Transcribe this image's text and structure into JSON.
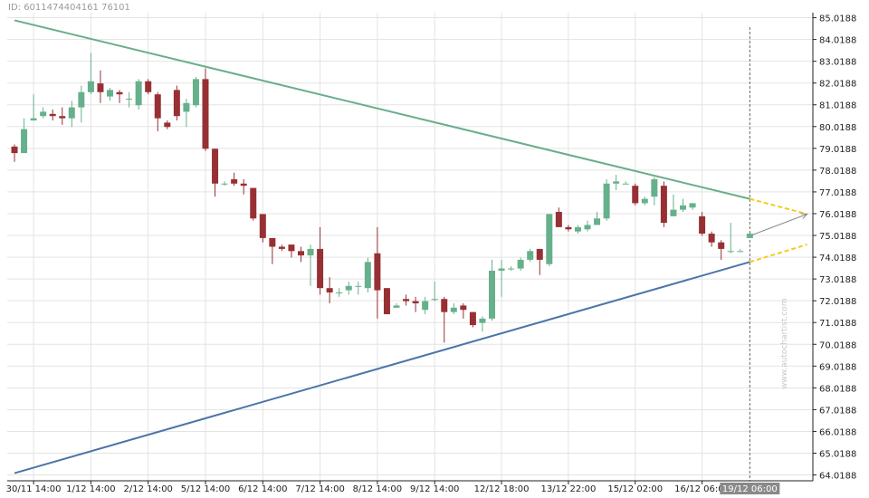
{
  "header": {
    "id_text": "ID: 6011474404161 76101"
  },
  "watermark": "www.autochartist.com",
  "chart_data": {
    "type": "candlestick",
    "y_ticks": [
      64.0188,
      65.0188,
      66.0188,
      67.0188,
      68.0188,
      69.0188,
      70.0188,
      71.0188,
      72.0188,
      73.0188,
      74.0188,
      75.0188,
      76.0188,
      77.0188,
      78.0188,
      79.0188,
      80.0188,
      81.0188,
      82.0188,
      83.0188,
      84.0188,
      85.0188
    ],
    "y_tick_labels": [
      "64.0188",
      "65.0188",
      "66.0188",
      "67.0188",
      "68.0188",
      "69.0188",
      "70.0188",
      "71.0188",
      "72.0188",
      "73.0188",
      "74.0188",
      "75.0188",
      "76.0188",
      "77.0188",
      "78.0188",
      "79.0188",
      "80.0188",
      "81.0188",
      "82.0188",
      "83.0188",
      "84.0188",
      "85.0188"
    ],
    "ylim": [
      63.75,
      85.25
    ],
    "x_tick_labels": [
      {
        "label": "30/11 14:00",
        "index": 2
      },
      {
        "label": "1/12 14:00",
        "index": 8
      },
      {
        "label": "2/12 14:00",
        "index": 14
      },
      {
        "label": "5/12 14:00",
        "index": 20
      },
      {
        "label": "6/12 14:00",
        "index": 26
      },
      {
        "label": "7/12 14:00",
        "index": 32
      },
      {
        "label": "8/12 14:00",
        "index": 38
      },
      {
        "label": "9/12 14:00",
        "index": 44
      },
      {
        "label": "12/12 18:00",
        "index": 51
      },
      {
        "label": "13/12 22:00",
        "index": 58
      },
      {
        "label": "15/12 02:00",
        "index": 65
      },
      {
        "label": "16/12 06:00",
        "index": 72
      }
    ],
    "current_time_label": "19/12 06:00",
    "current_index": 77,
    "candles": [
      [
        79.1,
        79.2,
        78.4,
        78.8
      ],
      [
        78.8,
        80.4,
        78.8,
        79.9
      ],
      [
        80.3,
        81.5,
        80.3,
        80.4
      ],
      [
        80.5,
        80.9,
        80.4,
        80.7
      ],
      [
        80.6,
        80.8,
        80.3,
        80.5
      ],
      [
        80.5,
        80.9,
        80.1,
        80.4
      ],
      [
        80.4,
        81.2,
        80.0,
        80.9
      ],
      [
        80.9,
        81.9,
        80.2,
        81.6
      ],
      [
        81.6,
        83.4,
        81.5,
        82.1
      ],
      [
        82.0,
        82.6,
        81.1,
        81.6
      ],
      [
        81.4,
        81.8,
        81.2,
        81.7
      ],
      [
        81.6,
        81.7,
        81.1,
        81.5
      ],
      [
        81.3,
        81.6,
        80.9,
        81.3
      ],
      [
        81.0,
        82.2,
        80.8,
        82.1
      ],
      [
        82.1,
        82.2,
        81.5,
        81.6
      ],
      [
        81.5,
        81.6,
        79.8,
        80.4
      ],
      [
        80.2,
        80.3,
        79.9,
        80.0
      ],
      [
        81.7,
        81.9,
        80.3,
        80.5
      ],
      [
        80.7,
        81.3,
        80.0,
        81.1
      ],
      [
        81.0,
        82.3,
        80.9,
        82.2
      ],
      [
        82.2,
        82.7,
        78.9,
        79.0
      ],
      [
        79.0,
        79.0,
        76.8,
        77.4
      ],
      [
        77.4,
        77.5,
        77.3,
        77.4
      ],
      [
        77.6,
        77.9,
        77.3,
        77.4
      ],
      [
        77.4,
        77.6,
        76.9,
        77.3
      ],
      [
        77.2,
        77.2,
        75.7,
        75.8
      ],
      [
        76.0,
        76.0,
        74.7,
        74.9
      ],
      [
        74.9,
        74.9,
        73.7,
        74.5
      ],
      [
        74.5,
        74.6,
        74.3,
        74.4
      ],
      [
        74.6,
        74.6,
        74.0,
        74.3
      ],
      [
        74.3,
        74.5,
        73.8,
        74.1
      ],
      [
        74.1,
        74.6,
        72.7,
        74.4
      ],
      [
        74.4,
        75.4,
        72.3,
        72.6
      ],
      [
        72.6,
        73.1,
        71.9,
        72.4
      ],
      [
        72.4,
        72.6,
        72.2,
        72.4
      ],
      [
        72.5,
        72.9,
        72.3,
        72.7
      ],
      [
        72.7,
        72.9,
        72.3,
        72.7
      ],
      [
        72.6,
        74.0,
        72.4,
        73.8
      ],
      [
        74.2,
        75.4,
        71.2,
        72.5
      ],
      [
        72.6,
        72.6,
        71.4,
        71.4
      ],
      [
        71.7,
        71.9,
        71.7,
        71.8
      ],
      [
        72.1,
        72.3,
        71.8,
        72.0
      ],
      [
        72.0,
        72.2,
        71.5,
        71.9
      ],
      [
        71.6,
        72.2,
        71.4,
        72.0
      ],
      [
        72.1,
        72.9,
        72.0,
        72.1
      ],
      [
        72.1,
        72.2,
        70.1,
        71.5
      ],
      [
        71.5,
        71.9,
        71.4,
        71.7
      ],
      [
        71.8,
        71.9,
        71.2,
        71.6
      ],
      [
        71.5,
        71.5,
        70.8,
        70.9
      ],
      [
        71.0,
        71.3,
        70.6,
        71.2
      ],
      [
        71.2,
        73.9,
        71.1,
        73.4
      ],
      [
        73.4,
        73.9,
        72.2,
        73.5
      ],
      [
        73.5,
        73.6,
        73.4,
        73.5
      ],
      [
        73.5,
        74.0,
        73.4,
        73.9
      ],
      [
        73.9,
        74.4,
        73.8,
        74.3
      ],
      [
        74.4,
        74.4,
        73.2,
        73.9
      ],
      [
        73.7,
        76.0,
        73.6,
        76.0
      ],
      [
        76.1,
        76.3,
        75.4,
        75.4
      ],
      [
        75.4,
        75.5,
        75.2,
        75.3
      ],
      [
        75.2,
        75.5,
        75.1,
        75.4
      ],
      [
        75.3,
        75.7,
        75.2,
        75.5
      ],
      [
        75.5,
        76.1,
        75.5,
        75.8
      ],
      [
        75.8,
        77.6,
        75.7,
        77.4
      ],
      [
        77.4,
        77.8,
        77.1,
        77.5
      ],
      [
        77.4,
        77.5,
        77.4,
        77.4
      ],
      [
        77.3,
        77.4,
        76.4,
        76.5
      ],
      [
        76.5,
        76.8,
        76.4,
        76.7
      ],
      [
        76.8,
        77.7,
        76.4,
        77.6
      ],
      [
        77.3,
        77.5,
        75.4,
        75.6
      ],
      [
        75.9,
        76.9,
        75.9,
        76.2
      ],
      [
        76.2,
        76.7,
        76.1,
        76.4
      ],
      [
        76.3,
        76.5,
        76.2,
        76.5
      ],
      [
        75.9,
        76.1,
        75.0,
        75.1
      ],
      [
        75.1,
        75.2,
        74.5,
        74.7
      ],
      [
        74.7,
        74.8,
        73.9,
        74.4
      ],
      [
        74.3,
        75.6,
        74.2,
        74.3
      ],
      [
        74.3,
        74.4,
        74.3,
        74.3
      ],
      [
        74.9,
        75.1,
        74.9,
        75.1
      ]
    ],
    "lines": [
      {
        "name": "resistance",
        "color": "#6aad8c",
        "points": [
          [
            0,
            84.9
          ],
          [
            77,
            76.7
          ]
        ]
      },
      {
        "name": "support",
        "color": "#4c75a8",
        "points": [
          [
            0,
            64.1
          ],
          [
            77,
            73.8
          ]
        ]
      }
    ],
    "projections": [
      {
        "name": "resistance-projection",
        "color": "#f2cc1f",
        "points": [
          [
            77,
            76.7
          ],
          [
            83,
            76.0
          ]
        ]
      },
      {
        "name": "support-projection",
        "color": "#f2cc1f",
        "points": [
          [
            77,
            73.8
          ],
          [
            83,
            74.6
          ]
        ]
      }
    ],
    "forecast_arrow": {
      "color": "#888888",
      "points": [
        [
          77,
          75.0
        ],
        [
          83,
          76.0
        ]
      ]
    },
    "colors": {
      "up": "#67b08c",
      "down": "#973034",
      "grid": "#e3e3e3",
      "axis": "#222222"
    }
  }
}
